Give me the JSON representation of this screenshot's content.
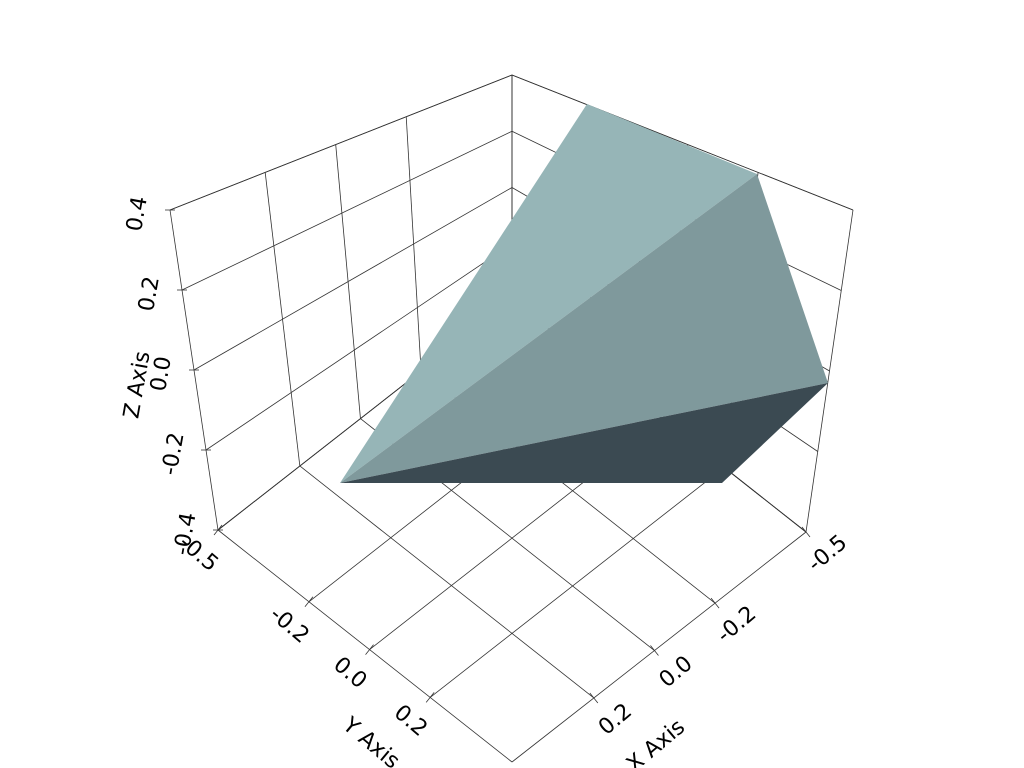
{
  "chart_data": {
    "type": "mesh3d",
    "xlabel": "X Axis",
    "ylabel": "Y Axis",
    "zlabel": "Z Axis",
    "xlim": [
      -0.5,
      0.47
    ],
    "ylim": [
      -0.5,
      0.47
    ],
    "zlim": [
      -0.4,
      0.4
    ],
    "xticks": [
      -0.5,
      -0.2,
      {
        "value": 0,
        "label": "0.0"
      },
      0.2
    ],
    "yticks": [
      -0.5,
      -0.2,
      {
        "value": 0,
        "label": "0.0"
      },
      0.2
    ],
    "zticks": [
      -0.4,
      -0.2,
      {
        "value": 0,
        "label": "0.0"
      },
      0.2,
      0.4
    ],
    "grid": true
  }
}
